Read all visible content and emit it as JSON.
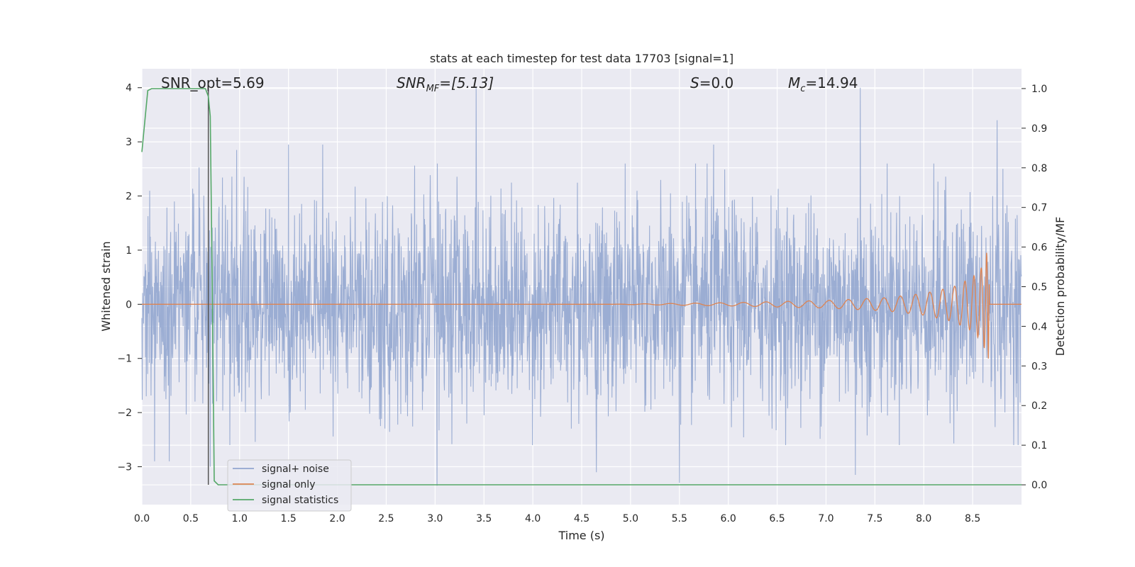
{
  "chart_data": {
    "type": "line",
    "title": "stats at each timestep for test data 17703 [signal=1]",
    "xlabel": "Time (s)",
    "ylabel": "Whitened strain",
    "ylabel_right": "Detection probability/MF",
    "xlim": [
      0.0,
      9.0
    ],
    "ylim": [
      -3.7,
      4.35
    ],
    "ylim_right": [
      -0.05,
      1.05
    ],
    "xticks": [
      "0.0",
      "0.5",
      "1.0",
      "1.5",
      "2.0",
      "2.5",
      "3.0",
      "3.5",
      "4.0",
      "4.5",
      "5.0",
      "5.5",
      "6.0",
      "6.5",
      "7.0",
      "7.5",
      "8.0",
      "8.5"
    ],
    "xtick_values": [
      0.0,
      0.5,
      1.0,
      1.5,
      2.0,
      2.5,
      3.0,
      3.5,
      4.0,
      4.5,
      5.0,
      5.5,
      6.0,
      6.5,
      7.0,
      7.5,
      8.0,
      8.5
    ],
    "yticks_left": [
      "−3",
      "−2",
      "−1",
      "0",
      "1",
      "2",
      "3",
      "4"
    ],
    "ytick_values_left": [
      -3,
      -2,
      -1,
      0,
      1,
      2,
      3,
      4
    ],
    "yticks_right": [
      "0.0",
      "0.1",
      "0.2",
      "0.3",
      "0.4",
      "0.5",
      "0.6",
      "0.7",
      "0.8",
      "0.9",
      "1.0"
    ],
    "ytick_values_right": [
      0.0,
      0.1,
      0.2,
      0.3,
      0.4,
      0.5,
      0.6,
      0.7,
      0.8,
      0.9,
      1.0
    ],
    "grid": true,
    "legend_position": "lower-left",
    "annotations": {
      "snr_opt": "SNR_opt=5.69",
      "snr_mf_base": "SNR",
      "snr_mf_sub": "MF",
      "snr_mf_val": "=[5.13]",
      "s_base": "S",
      "s_val": "=0.0",
      "mc_base": "M",
      "mc_sub": "c",
      "mc_val": "=14.94"
    },
    "series": [
      {
        "name": "signal+ noise",
        "color": "#92a6cf",
        "axis": "left",
        "t_range": [
          0.0,
          9.0
        ],
        "typical_amplitude": 1.6,
        "peak_values": [
          [
            0.13,
            -2.9
          ],
          [
            0.28,
            -2.9
          ],
          [
            0.7,
            -3.0
          ],
          [
            0.97,
            2.85
          ],
          [
            1.5,
            2.95
          ],
          [
            1.85,
            2.95
          ],
          [
            3.02,
            -3.35
          ],
          [
            3.42,
            4.0
          ],
          [
            4.65,
            -3.1
          ],
          [
            5.5,
            -3.3
          ],
          [
            5.85,
            2.95
          ],
          [
            7.35,
            4.0
          ],
          [
            7.3,
            -3.15
          ],
          [
            8.75,
            3.4
          ]
        ]
      },
      {
        "name": "signal only",
        "color": "#dd8452",
        "axis": "left",
        "points": [
          [
            0.0,
            0.0
          ],
          [
            4.8,
            0.0
          ],
          [
            6.0,
            0.03
          ],
          [
            7.0,
            0.07
          ],
          [
            7.6,
            0.12
          ],
          [
            8.0,
            0.2
          ],
          [
            8.3,
            0.32
          ],
          [
            8.5,
            0.5
          ],
          [
            8.6,
            0.7
          ],
          [
            8.66,
            1.05
          ],
          [
            8.68,
            0.0
          ],
          [
            9.0,
            0.0
          ]
        ]
      },
      {
        "name": "signal statistics",
        "color": "#55a868",
        "axis": "right",
        "points": [
          [
            0.0,
            0.84
          ],
          [
            0.06,
            0.995
          ],
          [
            0.1,
            1.0
          ],
          [
            0.65,
            1.0
          ],
          [
            0.68,
            0.98
          ],
          [
            0.7,
            0.93
          ],
          [
            0.72,
            0.5
          ],
          [
            0.74,
            0.01
          ],
          [
            0.78,
            0.0
          ],
          [
            9.0,
            0.0
          ]
        ]
      }
    ],
    "vertical_line": {
      "x": 0.68,
      "color": "#555555"
    }
  }
}
